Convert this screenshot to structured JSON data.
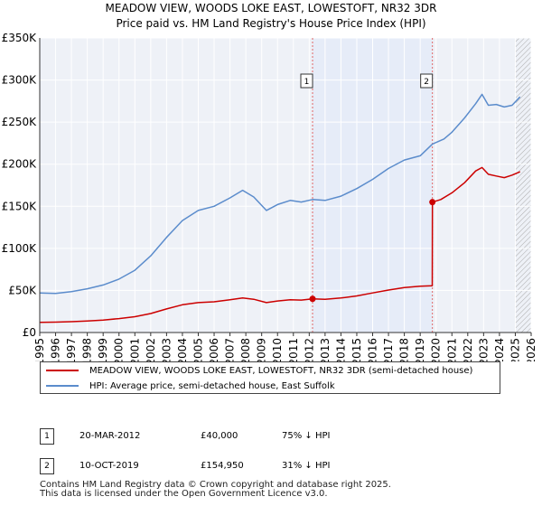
{
  "header": {
    "title": "MEADOW VIEW, WOODS LOKE EAST, LOWESTOFT, NR32 3DR",
    "subtitle": "Price paid vs. HM Land Registry's House Price Index (HPI)"
  },
  "chart_data": {
    "type": "line",
    "title": "MEADOW VIEW, WOODS LOKE EAST, LOWESTOFT, NR32 3DR",
    "subtitle": "Price paid vs. HM Land Registry's House Price Index (HPI)",
    "xlabel": "",
    "ylabel": "",
    "xlim": [
      1995,
      2026
    ],
    "ylim": [
      0,
      350000
    ],
    "y_ticks": [
      {
        "value": 0,
        "label": "£0"
      },
      {
        "value": 50000,
        "label": "£50K"
      },
      {
        "value": 100000,
        "label": "£100K"
      },
      {
        "value": 150000,
        "label": "£150K"
      },
      {
        "value": 200000,
        "label": "£200K"
      },
      {
        "value": 250000,
        "label": "£250K"
      },
      {
        "value": 300000,
        "label": "£300K"
      },
      {
        "value": 350000,
        "label": "£350K"
      }
    ],
    "x_ticks": [
      "1995",
      "1996",
      "1997",
      "1998",
      "1999",
      "2000",
      "2001",
      "2002",
      "2003",
      "2004",
      "2005",
      "2006",
      "2007",
      "2008",
      "2009",
      "2010",
      "2011",
      "2012",
      "2013",
      "2014",
      "2015",
      "2016",
      "2017",
      "2018",
      "2019",
      "2020",
      "2021",
      "2022",
      "2023",
      "2024",
      "2025",
      "2026"
    ],
    "grid": true,
    "shaded_period": {
      "from": 2012.21,
      "to": 2019.77,
      "color": "#e6ecf8"
    },
    "forecast_from": 2025.0,
    "series": [
      {
        "name": "MEADOW VIEW, WOODS LOKE EAST, LOWESTOFT, NR32 3DR (semi-detached house)",
        "color": "#cc0000",
        "points": [
          [
            1995.0,
            12000
          ],
          [
            1996.0,
            12300
          ],
          [
            1997.0,
            12900
          ],
          [
            1998.0,
            13700
          ],
          [
            1999.0,
            14800
          ],
          [
            2000.0,
            16500
          ],
          [
            2001.0,
            18800
          ],
          [
            2002.0,
            22500
          ],
          [
            2003.0,
            28000
          ],
          [
            2004.0,
            33000
          ],
          [
            2005.0,
            35500
          ],
          [
            2006.0,
            36500
          ],
          [
            2007.0,
            39000
          ],
          [
            2007.8,
            41000
          ],
          [
            2008.5,
            39500
          ],
          [
            2009.3,
            35500
          ],
          [
            2010.0,
            37500
          ],
          [
            2010.8,
            39000
          ],
          [
            2011.5,
            38500
          ],
          [
            2012.21,
            40000
          ],
          [
            2013.0,
            39500
          ],
          [
            2014.0,
            41000
          ],
          [
            2015.0,
            43500
          ],
          [
            2016.0,
            47000
          ],
          [
            2017.0,
            50500
          ],
          [
            2018.0,
            53500
          ],
          [
            2019.0,
            55000
          ],
          [
            2019.76,
            55500
          ],
          [
            2019.77,
            154950
          ],
          [
            2020.3,
            158000
          ],
          [
            2021.0,
            166000
          ],
          [
            2021.8,
            178000
          ],
          [
            2022.5,
            192000
          ],
          [
            2022.9,
            196000
          ],
          [
            2023.3,
            188000
          ],
          [
            2023.8,
            186000
          ],
          [
            2024.3,
            184000
          ],
          [
            2024.8,
            187000
          ],
          [
            2025.3,
            191000
          ]
        ]
      },
      {
        "name": "HPI: Average price, semi-detached house, East Suffolk",
        "color": "#5b8ccc",
        "points": [
          [
            1995.0,
            47000
          ],
          [
            1996.0,
            46500
          ],
          [
            1997.0,
            48500
          ],
          [
            1998.0,
            52000
          ],
          [
            1999.0,
            56500
          ],
          [
            2000.0,
            63500
          ],
          [
            2001.0,
            74000
          ],
          [
            2002.0,
            91000
          ],
          [
            2003.0,
            113000
          ],
          [
            2004.0,
            133000
          ],
          [
            2005.0,
            145000
          ],
          [
            2006.0,
            150000
          ],
          [
            2007.0,
            160000
          ],
          [
            2007.8,
            169000
          ],
          [
            2008.5,
            161000
          ],
          [
            2009.3,
            145000
          ],
          [
            2010.0,
            152000
          ],
          [
            2010.8,
            157000
          ],
          [
            2011.5,
            155000
          ],
          [
            2012.21,
            158000
          ],
          [
            2013.0,
            157000
          ],
          [
            2014.0,
            162000
          ],
          [
            2015.0,
            171000
          ],
          [
            2016.0,
            182000
          ],
          [
            2017.0,
            195000
          ],
          [
            2018.0,
            205000
          ],
          [
            2019.0,
            210000
          ],
          [
            2019.77,
            224000
          ],
          [
            2020.5,
            230000
          ],
          [
            2021.0,
            238000
          ],
          [
            2021.8,
            255000
          ],
          [
            2022.5,
            272000
          ],
          [
            2022.9,
            283000
          ],
          [
            2023.3,
            270000
          ],
          [
            2023.8,
            271000
          ],
          [
            2024.3,
            268000
          ],
          [
            2024.8,
            270000
          ],
          [
            2025.3,
            280000
          ]
        ]
      }
    ],
    "annotations": [
      {
        "id": "1",
        "x": 2012.21,
        "price": 40000,
        "date": "20-MAR-2012",
        "price_label": "£40,000",
        "hpi_label": "75% ↓ HPI"
      },
      {
        "id": "2",
        "x": 2019.77,
        "price": 154950,
        "date": "10-OCT-2019",
        "price_label": "£154,950",
        "hpi_label": "31% ↓ HPI"
      }
    ]
  },
  "legend": {
    "items": [
      {
        "label": "MEADOW VIEW, WOODS LOKE EAST, LOWESTOFT, NR32 3DR (semi-detached house)",
        "color": "#cc0000"
      },
      {
        "label": "HPI: Average price, semi-detached house, East Suffolk",
        "color": "#5b8ccc"
      }
    ]
  },
  "transactions": [
    {
      "id": "1",
      "date": "20-MAR-2012",
      "price": "£40,000",
      "hpi": "75% ↓ HPI"
    },
    {
      "id": "2",
      "date": "10-OCT-2019",
      "price": "£154,950",
      "hpi": "31% ↓ HPI"
    }
  ],
  "footer": {
    "line1": "Contains HM Land Registry data © Crown copyright and database right 2025.",
    "line2": "This data is licensed under the Open Government Licence v3.0."
  }
}
